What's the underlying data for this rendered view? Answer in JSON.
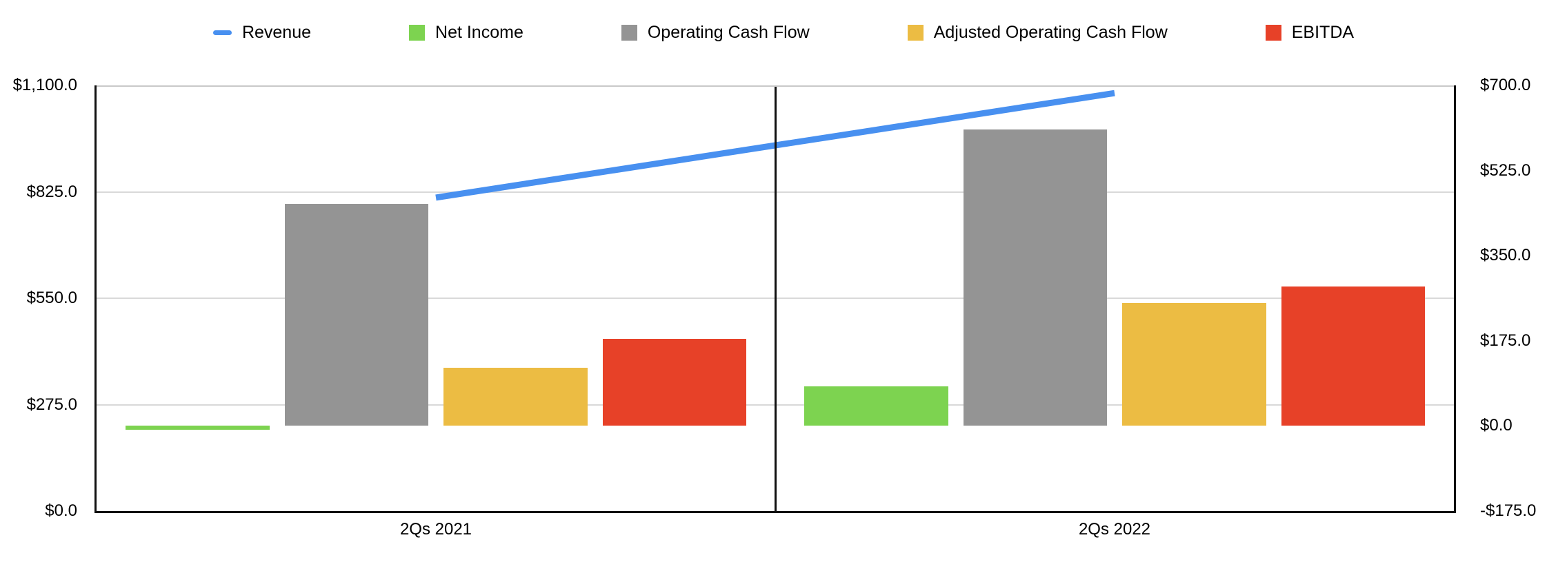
{
  "chart_data": {
    "type": "combo",
    "title": "",
    "categories": [
      "2Qs 2021",
      "2Qs 2022"
    ],
    "series": [
      {
        "name": "Revenue",
        "type": "line",
        "axis": "left",
        "color": "#4890f0",
        "values": [
          810,
          1080
        ]
      },
      {
        "name": "Net Income",
        "type": "bar",
        "axis": "right",
        "color": "#7dd350",
        "values": [
          -8,
          82
        ]
      },
      {
        "name": "Operating Cash Flow",
        "type": "bar",
        "axis": "right",
        "color": "#949494",
        "values": [
          457,
          610
        ]
      },
      {
        "name": "Adjusted Operating Cash Flow",
        "type": "bar",
        "axis": "right",
        "color": "#ecbc43",
        "values": [
          120,
          253
        ]
      },
      {
        "name": "EBITDA",
        "type": "bar",
        "axis": "right",
        "color": "#e74128",
        "values": [
          179,
          286
        ]
      }
    ],
    "left_axis": {
      "min": 0,
      "max": 1100,
      "tick_labels": [
        "$0.0",
        "$275.0",
        "$550.0",
        "$825.0",
        "$1,100.0"
      ]
    },
    "right_axis": {
      "min": -175,
      "max": 700,
      "tick_labels": [
        "-$175.0",
        "$0.0",
        "$175.0",
        "$350.0",
        "$525.0",
        "$700.0"
      ]
    },
    "legend_position": "top",
    "grid": {
      "from_axis": "left",
      "show_inner_only": true
    }
  },
  "styles": {
    "background": "#ffffff",
    "axis_color": "#111111",
    "plot_top_border_color": "#c9c9c9",
    "gridline_color": "#d9d9d9",
    "text_color": "#000000"
  }
}
